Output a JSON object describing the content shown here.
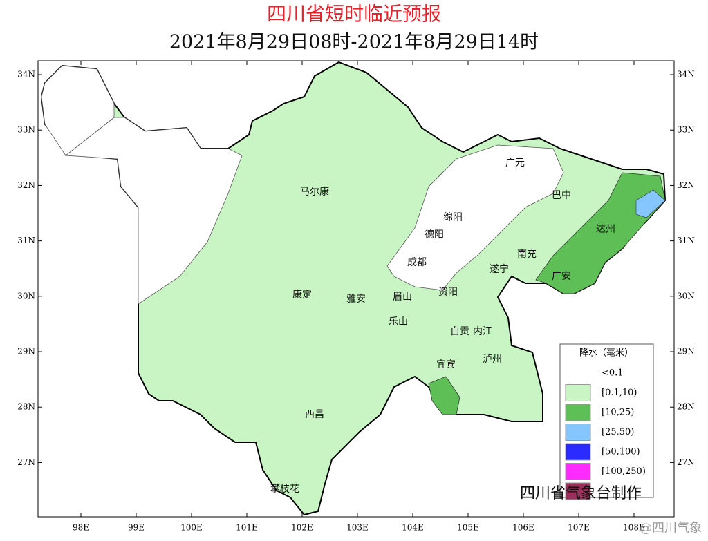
{
  "title": "四川省短时临近预报",
  "subtitle": "2021年8月29日08时-2021年8月29日14时",
  "xticks": [
    {
      "value": 98,
      "label": "98E"
    },
    {
      "value": 99,
      "label": "99E"
    },
    {
      "value": 100,
      "label": "100E"
    },
    {
      "value": 101,
      "label": "101E"
    },
    {
      "value": 102,
      "label": "102E"
    },
    {
      "value": 103,
      "label": "103E"
    },
    {
      "value": 104,
      "label": "104E"
    },
    {
      "value": 105,
      "label": "105E"
    },
    {
      "value": 106,
      "label": "106E"
    },
    {
      "value": 107,
      "label": "107E"
    },
    {
      "value": 108,
      "label": "108E"
    }
  ],
  "yticks": [
    {
      "value": 27,
      "label": "27N"
    },
    {
      "value": 28,
      "label": "28N"
    },
    {
      "value": 29,
      "label": "29N"
    },
    {
      "value": 30,
      "label": "30N"
    },
    {
      "value": 31,
      "label": "31N"
    },
    {
      "value": 32,
      "label": "32N"
    },
    {
      "value": 33,
      "label": "33N"
    },
    {
      "value": 34,
      "label": "34N"
    }
  ],
  "xlim": [
    97.225,
    108.725
  ],
  "ylim": [
    26.02,
    34.25
  ],
  "cities": [
    "马尔康",
    "广元",
    "巴中",
    "绵阳",
    "德阳",
    "达州",
    "南充",
    "成都",
    "遂宁",
    "广安",
    "康定",
    "雅安",
    "眉山",
    "资阳",
    "乐山",
    "自贡",
    "内江",
    "宜宾",
    "泸州",
    "西昌",
    "攀枝花"
  ],
  "legend": {
    "title": "降水（毫米）",
    "items": [
      {
        "label": "<0.1",
        "color": "#ffffff"
      },
      {
        "label": "[0.1,10)",
        "color": "#c8f5c3"
      },
      {
        "label": "[10,25)",
        "color": "#5dbf55"
      },
      {
        "label": "[25,50)",
        "color": "#86c6ff"
      },
      {
        "label": "[50,100)",
        "color": "#2b2bff"
      },
      {
        "label": "[100,250)",
        "color": "#ff2bff"
      },
      {
        "label": null,
        "color": "#9b2f5b"
      }
    ]
  },
  "footer": "四川省气象台制作",
  "watermark": "@四川气象"
}
